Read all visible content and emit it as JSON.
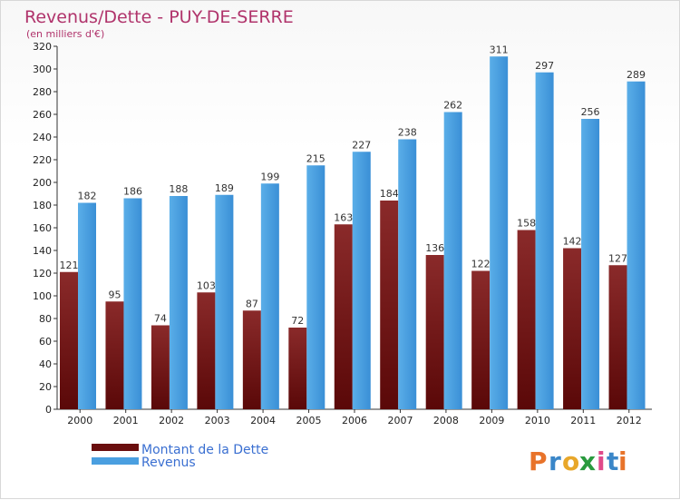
{
  "chart_data": {
    "type": "bar",
    "title": "Revenus/Dette - PUY-DE-SERRE",
    "subtitle": "(en milliers d'€)",
    "categories": [
      "2000",
      "2001",
      "2002",
      "2003",
      "2004",
      "2005",
      "2006",
      "2007",
      "2008",
      "2009",
      "2010",
      "2011",
      "2012"
    ],
    "series": [
      {
        "name": "Montant de la Dette",
        "color": "#7a1a1a",
        "values": [
          121,
          95,
          74,
          103,
          87,
          72,
          163,
          184,
          136,
          122,
          158,
          142,
          127
        ]
      },
      {
        "name": "Revenus",
        "color": "#4a9fe0",
        "values": [
          182,
          186,
          188,
          189,
          199,
          215,
          227,
          238,
          262,
          311,
          297,
          256,
          289
        ]
      }
    ],
    "ylim": [
      0,
      320
    ],
    "yticks": [
      0,
      20,
      40,
      60,
      80,
      100,
      120,
      140,
      160,
      180,
      200,
      220,
      240,
      260,
      280,
      300,
      320
    ],
    "grid": false,
    "legend_placement": "bottom-left"
  },
  "logo": {
    "text": "Proxiti",
    "letters": [
      "P",
      "r",
      "o",
      "x",
      "i",
      "t",
      "i"
    ],
    "colors": [
      "#e8732a",
      "#3a86c8",
      "#e8a72a",
      "#2a9a3e",
      "#e04a8a",
      "#3a86c8",
      "#e8732a"
    ]
  }
}
